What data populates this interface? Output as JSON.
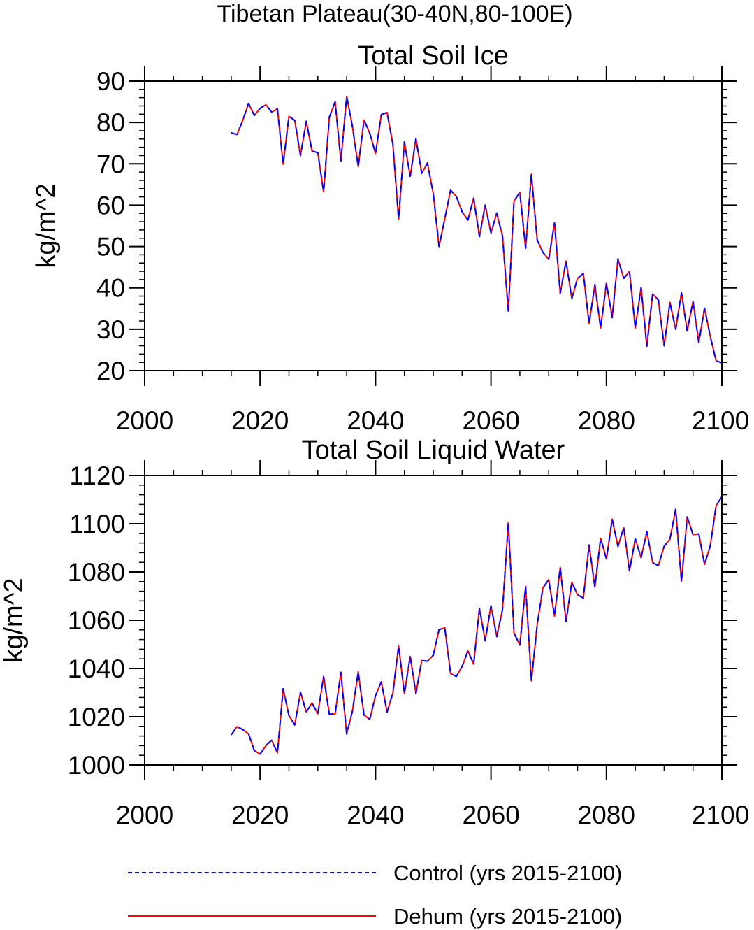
{
  "figure": {
    "title": "Tibetan Plateau(30-40N,80-100E)"
  },
  "legend": [
    {
      "label": "Control (yrs 2015-2100)",
      "color": "#0000ff",
      "style": "dashed"
    },
    {
      "label": "Dehum (yrs 2015-2100)",
      "color": "#ff0000",
      "style": "solid"
    }
  ],
  "chart_data": [
    {
      "type": "line",
      "title": "Total Soil Ice",
      "xlabel": "",
      "ylabel": "kg/m^2",
      "xlim": [
        2000,
        2100
      ],
      "ylim": [
        20,
        90
      ],
      "xticks": [
        2000,
        2020,
        2040,
        2060,
        2080,
        2100
      ],
      "yticks": [
        20,
        30,
        40,
        50,
        60,
        70,
        80,
        90
      ],
      "x": [
        2015,
        2016,
        2017,
        2018,
        2019,
        2020,
        2021,
        2022,
        2023,
        2024,
        2025,
        2026,
        2027,
        2028,
        2029,
        2030,
        2031,
        2032,
        2033,
        2034,
        2035,
        2036,
        2037,
        2038,
        2039,
        2040,
        2041,
        2042,
        2043,
        2044,
        2045,
        2046,
        2047,
        2048,
        2049,
        2050,
        2051,
        2052,
        2053,
        2054,
        2055,
        2056,
        2057,
        2058,
        2059,
        2060,
        2061,
        2062,
        2063,
        2064,
        2065,
        2066,
        2067,
        2068,
        2069,
        2070,
        2071,
        2072,
        2073,
        2074,
        2075,
        2076,
        2077,
        2078,
        2079,
        2080,
        2081,
        2082,
        2083,
        2084,
        2085,
        2086,
        2087,
        2088,
        2089,
        2090,
        2091,
        2092,
        2093,
        2094,
        2095,
        2096,
        2097,
        2098,
        2099,
        2100
      ],
      "series": [
        {
          "name": "Control (yrs 2015-2100)",
          "values": [
            77.5,
            77.1,
            80.5,
            84.6,
            81.7,
            83.4,
            84.3,
            82.5,
            83.3,
            69.9,
            81.5,
            80.5,
            72.0,
            80.3,
            73.1,
            72.7,
            63.2,
            81.3,
            85.0,
            70.7,
            86.3,
            79.0,
            69.3,
            80.6,
            77.4,
            72.5,
            81.9,
            82.4,
            74.8,
            56.6,
            75.3,
            67.0,
            76.1,
            67.7,
            70.2,
            62.8,
            50.0,
            56.7,
            63.6,
            62.1,
            58.4,
            56.4,
            61.7,
            52.4,
            60.0,
            53.3,
            58.1,
            52.5,
            34.4,
            61.0,
            63.1,
            49.6,
            67.5,
            51.6,
            48.6,
            46.9,
            55.7,
            38.7,
            46.5,
            37.4,
            42.3,
            43.5,
            31.3,
            40.8,
            30.3,
            41.1,
            32.8,
            47.0,
            42.3,
            44.0,
            30.3,
            40.1,
            25.9,
            38.5,
            37.1,
            26.0,
            36.5,
            30.0,
            38.8,
            29.6,
            36.7,
            26.8,
            35.1,
            28.2,
            22.4,
            21.9
          ]
        },
        {
          "name": "Dehum (yrs 2015-2100)",
          "values": [
            77.5,
            77.1,
            80.5,
            84.6,
            81.7,
            83.4,
            84.3,
            82.5,
            83.3,
            69.9,
            81.5,
            80.5,
            72.0,
            80.3,
            73.1,
            72.7,
            63.2,
            81.3,
            85.0,
            70.7,
            86.3,
            79.0,
            69.3,
            80.6,
            77.4,
            72.5,
            81.9,
            82.4,
            74.8,
            56.6,
            75.3,
            67.0,
            76.1,
            67.7,
            70.2,
            62.8,
            50.0,
            56.7,
            63.6,
            62.1,
            58.4,
            56.4,
            61.7,
            52.4,
            60.0,
            53.3,
            58.1,
            52.5,
            34.4,
            61.0,
            63.1,
            49.6,
            67.5,
            51.6,
            48.6,
            46.9,
            55.7,
            38.7,
            46.5,
            37.4,
            42.3,
            43.5,
            31.3,
            40.8,
            30.3,
            41.1,
            32.8,
            47.0,
            42.3,
            44.0,
            30.3,
            40.1,
            25.9,
            38.5,
            37.1,
            26.0,
            36.5,
            30.0,
            38.8,
            29.6,
            36.7,
            26.8,
            35.1,
            28.2,
            22.4,
            21.9
          ]
        }
      ]
    },
    {
      "type": "line",
      "title": "Total Soil Liquid Water",
      "xlabel": "",
      "ylabel": "kg/m^2",
      "xlim": [
        2000,
        2100
      ],
      "ylim": [
        1000,
        1120
      ],
      "xticks": [
        2000,
        2020,
        2040,
        2060,
        2080,
        2100
      ],
      "yticks": [
        1000,
        1020,
        1040,
        1060,
        1080,
        1100,
        1120
      ],
      "x": [
        2015,
        2016,
        2017,
        2018,
        2019,
        2020,
        2021,
        2022,
        2023,
        2024,
        2025,
        2026,
        2027,
        2028,
        2029,
        2030,
        2031,
        2032,
        2033,
        2034,
        2035,
        2036,
        2037,
        2038,
        2039,
        2040,
        2041,
        2042,
        2043,
        2044,
        2045,
        2046,
        2047,
        2048,
        2049,
        2050,
        2051,
        2052,
        2053,
        2054,
        2055,
        2056,
        2057,
        2058,
        2059,
        2060,
        2061,
        2062,
        2063,
        2064,
        2065,
        2066,
        2067,
        2068,
        2069,
        2070,
        2071,
        2072,
        2073,
        2074,
        2075,
        2076,
        2077,
        2078,
        2079,
        2080,
        2081,
        2082,
        2083,
        2084,
        2085,
        2086,
        2087,
        2088,
        2089,
        2090,
        2091,
        2092,
        2093,
        2094,
        2095,
        2096,
        2097,
        2098,
        2099,
        2100
      ],
      "series": [
        {
          "name": "Control (yrs 2015-2100)",
          "values": [
            1012.5,
            1015.9,
            1014.7,
            1012.9,
            1006.0,
            1004.5,
            1008.0,
            1010.3,
            1005.0,
            1031.6,
            1020.5,
            1016.6,
            1030.2,
            1021.9,
            1025.7,
            1021.2,
            1036.7,
            1021.0,
            1021.2,
            1038.4,
            1012.8,
            1022.4,
            1038.6,
            1020.7,
            1018.9,
            1028.8,
            1034.5,
            1021.9,
            1029.8,
            1049.4,
            1029.6,
            1045.0,
            1029.6,
            1043.3,
            1043.0,
            1045.5,
            1056.1,
            1056.9,
            1037.9,
            1036.7,
            1040.8,
            1047.3,
            1041.8,
            1065.0,
            1051.5,
            1066.0,
            1053.2,
            1064.4,
            1100.3,
            1054.7,
            1049.7,
            1074.0,
            1034.8,
            1058.0,
            1073.4,
            1076.8,
            1061.7,
            1081.9,
            1059.5,
            1075.7,
            1070.6,
            1069.2,
            1091.2,
            1073.7,
            1094.0,
            1085.4,
            1101.9,
            1090.6,
            1098.4,
            1080.5,
            1093.8,
            1085.9,
            1096.8,
            1083.9,
            1082.6,
            1090.7,
            1093.6,
            1106.0,
            1076.1,
            1102.8,
            1095.5,
            1095.8,
            1083.1,
            1091.0,
            1107.4,
            1111.3
          ]
        },
        {
          "name": "Dehum (yrs 2015-2100)",
          "values": [
            1012.5,
            1015.9,
            1014.7,
            1012.9,
            1006.0,
            1004.5,
            1008.0,
            1010.3,
            1005.0,
            1031.6,
            1020.5,
            1016.6,
            1030.2,
            1021.9,
            1025.7,
            1021.2,
            1036.7,
            1021.0,
            1021.2,
            1038.4,
            1012.8,
            1022.4,
            1038.6,
            1020.7,
            1018.9,
            1028.8,
            1034.5,
            1021.9,
            1029.8,
            1049.4,
            1029.6,
            1045.0,
            1029.6,
            1043.3,
            1043.0,
            1045.5,
            1056.1,
            1056.9,
            1037.9,
            1036.7,
            1040.8,
            1047.3,
            1041.8,
            1065.0,
            1051.5,
            1066.0,
            1053.2,
            1064.4,
            1100.3,
            1054.7,
            1049.7,
            1074.0,
            1034.8,
            1058.0,
            1073.4,
            1076.8,
            1061.7,
            1081.9,
            1059.5,
            1075.7,
            1070.6,
            1069.2,
            1091.2,
            1073.7,
            1094.0,
            1085.4,
            1101.9,
            1090.6,
            1098.4,
            1080.5,
            1093.8,
            1085.9,
            1096.8,
            1083.9,
            1082.6,
            1090.7,
            1093.6,
            1106.0,
            1076.1,
            1102.8,
            1095.5,
            1095.8,
            1083.1,
            1091.0,
            1107.4,
            1111.3
          ]
        }
      ]
    }
  ]
}
